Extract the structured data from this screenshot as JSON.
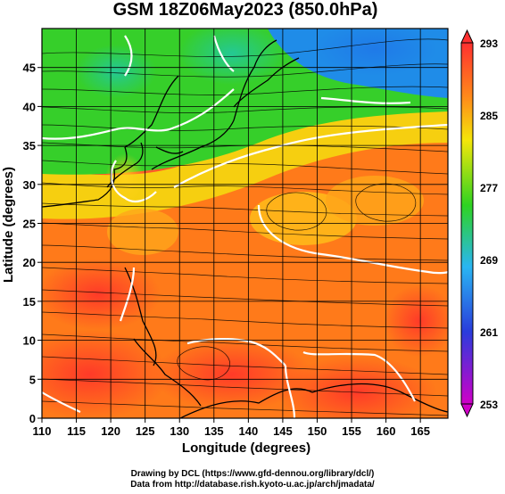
{
  "title": "GSM 18Z06May2023 (850.0hPa)",
  "xlabel": "Longitude (degrees)",
  "ylabel": "Latitude (degrees)",
  "colorbar": {
    "ticks": [
      "293",
      "285",
      "277",
      "269",
      "261",
      "253"
    ],
    "colors": [
      "#ff3a2a",
      "#ff8a1a",
      "#f4e60a",
      "#29d31c",
      "#28b8f0",
      "#2a3cdc",
      "#cc00cc"
    ]
  },
  "chart_data": {
    "type": "heatmap",
    "xlim": [
      110,
      169
    ],
    "ylim": [
      0,
      50
    ],
    "xticks": [
      110,
      115,
      120,
      125,
      130,
      135,
      140,
      145,
      150,
      155,
      160,
      165
    ],
    "yticks": [
      0,
      5,
      10,
      15,
      20,
      25,
      30,
      35,
      40,
      45
    ],
    "colorbar_range": [
      253,
      293
    ],
    "colorbar_ticks": [
      293,
      285,
      277,
      269,
      261,
      253
    ],
    "grid": true
  },
  "credits": {
    "line1": "Drawing by DCL (https://www.gfd-dennou.org/library/dcl/)",
    "line2": "Data from http://database.rish.kyoto-u.ac.jp/arch/jmadata/"
  }
}
